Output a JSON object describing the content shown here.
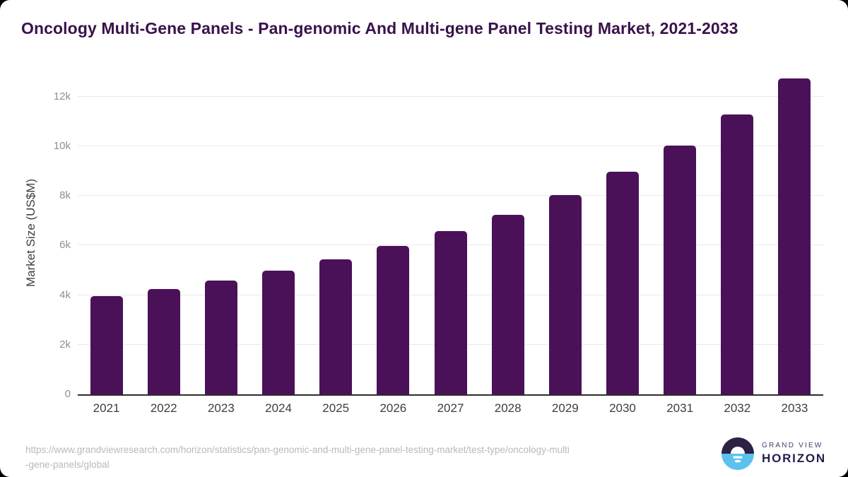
{
  "header": {
    "title": "Oncology Multi-Gene Panels - Pan-genomic And Multi-gene Panel Testing Market, 2021-2033"
  },
  "chart_data": {
    "type": "bar",
    "title": "Oncology Multi-Gene Panels - Pan-genomic And Multi-gene Panel Testing Market, 2021-2033",
    "categories": [
      "2021",
      "2022",
      "2023",
      "2024",
      "2025",
      "2026",
      "2027",
      "2028",
      "2029",
      "2030",
      "2031",
      "2032",
      "2033"
    ],
    "values": [
      3970,
      4250,
      4590,
      5000,
      5450,
      5970,
      6580,
      7240,
      8030,
      8970,
      10030,
      11280,
      12740
    ],
    "xlabel": "",
    "ylabel": "Market Size (US$M)",
    "ylim": [
      0,
      13050
    ],
    "yticks": [
      0,
      2000,
      4000,
      6000,
      8000,
      10000,
      12000
    ],
    "ytick_labels": [
      "0",
      "2k",
      "4k",
      "6k",
      "8k",
      "10k",
      "12k"
    ],
    "grid": "horizontal",
    "legend": "none",
    "bar_color": "#4a1159"
  },
  "footer": {
    "url_line1": "https://www.grandviewresearch.com/horizon/statistics/pan-genomic-and-multi-gene-panel-testing-market/test-type/oncology-multi",
    "url_line2": "-gene-panels/global",
    "logo_top": "GRAND VIEW",
    "logo_bottom": "HORIZON"
  },
  "icons": {
    "logo_icon": "horizon-sun-icon"
  },
  "colors": {
    "bar": "#4a1159",
    "title_text": "#3a124b",
    "axis_line": "#2d2d2d",
    "gridline": "#eaeaea",
    "y_tick_text": "#8f8f8f",
    "axis_title_text": "#3f3f3f",
    "x_label_text": "#3d3d3d",
    "source_text": "#b9b9b9",
    "logo_navy": "#241d4e",
    "logo_blue": "#5bc2ef",
    "logo_dark_top": "#2d2145",
    "card_background": "#ffffff",
    "page_background": "#000000"
  }
}
